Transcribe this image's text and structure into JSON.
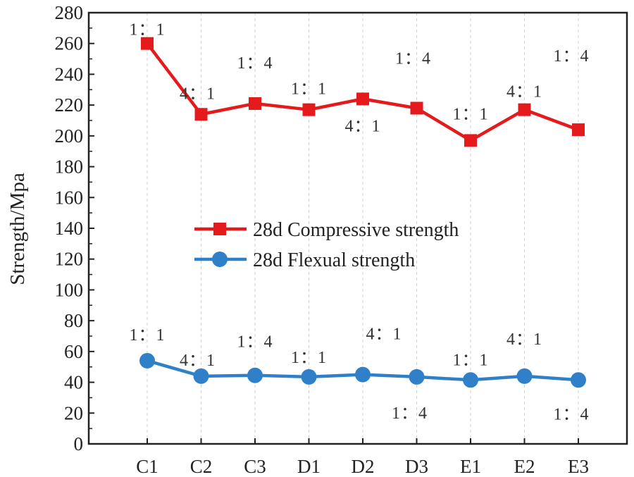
{
  "chart_data": {
    "type": "line",
    "title": "",
    "xlabel": "",
    "ylabel": "Strength/Mpa",
    "ylim": [
      0,
      280
    ],
    "yticks": [
      0,
      20,
      40,
      60,
      80,
      100,
      120,
      140,
      160,
      180,
      200,
      220,
      240,
      260,
      280
    ],
    "categories": [
      "C1",
      "C2",
      "C3",
      "D1",
      "D2",
      "D3",
      "E1",
      "E2",
      "E3"
    ],
    "grid": "vertical-dashed",
    "legend": "center",
    "series": [
      {
        "name": "28d Compressive strength",
        "marker": "square",
        "color": "#e41a1c",
        "values": [
          260,
          214,
          221,
          217,
          224,
          218,
          197,
          217,
          204
        ],
        "ratio_labels": [
          "1：1",
          "4：1",
          "1：4",
          "1：1",
          "4：1",
          "1：4",
          "1：1",
          "4：1",
          "1：4"
        ]
      },
      {
        "name": "28d Flexual strength",
        "marker": "circle",
        "color": "#2f80c8",
        "values": [
          54,
          44,
          44.5,
          43.5,
          45,
          43.5,
          41.5,
          44,
          41.5
        ],
        "ratio_labels": [
          "1：1",
          "4：1",
          "1：4",
          "1：1",
          "4：1",
          "1：4",
          "1：1",
          "4：1",
          "1：4"
        ]
      }
    ]
  }
}
